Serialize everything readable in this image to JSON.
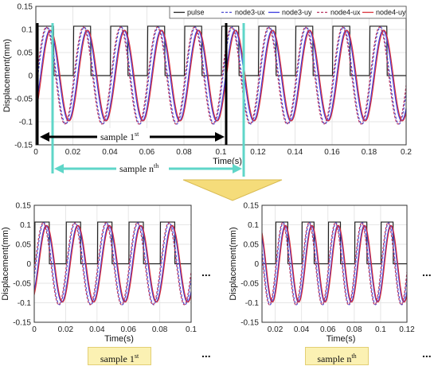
{
  "chart_data": [
    {
      "id": "top",
      "type": "line",
      "xlabel": "Time(s)",
      "ylabel": "Displacement(mm)",
      "xlim": [
        0,
        0.2
      ],
      "ylim": [
        -0.15,
        0.15
      ],
      "xticks": [
        "0",
        "0.02",
        "0.04",
        "0.06",
        "0.08",
        "0.1",
        "0.12",
        "0.14",
        "0.16",
        "0.18",
        "0.2"
      ],
      "yticks": [
        "0.15",
        "0.1",
        "0.05",
        "0",
        "-0.05",
        "-0.1",
        "-0.15"
      ],
      "grid": true,
      "legend_position": "top-right",
      "signal": {
        "period": 0.02,
        "amplitude_pulse": 0.107,
        "amplitude_ux": 0.105,
        "amplitude_uy": 0.098
      },
      "series": [
        {
          "name": "pulse",
          "color": "#222222",
          "style": "solid"
        },
        {
          "name": "node3-ux",
          "color": "#4a4ad0",
          "style": "dashed"
        },
        {
          "name": "node3-uy",
          "color": "#3a3adf",
          "style": "solid"
        },
        {
          "name": "node4-ux",
          "color": "#b83460",
          "style": "dashed"
        },
        {
          "name": "node4-uy",
          "color": "#d9313a",
          "style": "solid"
        }
      ]
    },
    {
      "id": "bottom-left",
      "type": "line",
      "xlabel": "Time(s)",
      "ylabel": "Displacement(mm)",
      "xlim": [
        0,
        0.1
      ],
      "ylim": [
        -0.15,
        0.15
      ],
      "xticks": [
        "0",
        "0.02",
        "0.04",
        "0.06",
        "0.08",
        "0.1"
      ],
      "yticks": [
        "0.15",
        "0.1",
        "0.05",
        "0",
        "-0.05",
        "-0.1",
        "-0.15"
      ],
      "grid": true
    },
    {
      "id": "bottom-right",
      "type": "line",
      "xlabel": "Time(s)",
      "ylabel": "Displacement(mm)",
      "xlim": [
        0.01,
        0.12
      ],
      "ylim": [
        -0.15,
        0.15
      ],
      "xticks": [
        "0.02",
        "0.04",
        "0.06",
        "0.08",
        "0.1",
        "0.12"
      ],
      "yticks": [
        "0.15",
        "0.1",
        "0.05",
        "0",
        "-0.05",
        "-0.1",
        "-0.15"
      ],
      "grid": true
    }
  ],
  "annotations": {
    "sample_first": {
      "text": "sample 1",
      "sup": "st"
    },
    "sample_nth": {
      "text": "sample n",
      "sup": "th"
    },
    "ellipsis": "...",
    "colors": {
      "window_first": "#000000",
      "window_nth": "#5fd6c8",
      "arrow_down": "#f5dc7a"
    }
  },
  "captions": {
    "left": {
      "text": "sample 1",
      "sup": "st"
    },
    "right": {
      "text": "sample n",
      "sup": "th"
    }
  }
}
